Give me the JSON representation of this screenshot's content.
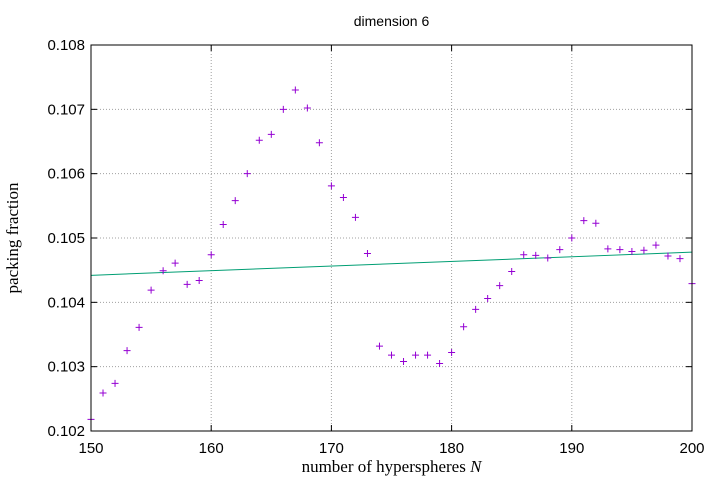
{
  "chart_data": {
    "type": "scatter",
    "title": "dimension 6",
    "xlabel_prefix": "number of hyperspheres ",
    "xlabel_var": "N",
    "ylabel": "packing fraction",
    "xlim": [
      150,
      200
    ],
    "ylim": [
      0.102,
      0.108
    ],
    "xticks": [
      150,
      160,
      170,
      180,
      190,
      200
    ],
    "yticks": [
      0.102,
      0.103,
      0.104,
      0.105,
      0.106,
      0.107,
      0.108
    ],
    "xtick_labels": [
      "150",
      "160",
      "170",
      "180",
      "190",
      "200"
    ],
    "ytick_labels": [
      "0.102",
      "0.103",
      "0.104",
      "0.105",
      "0.106",
      "0.107",
      "0.108"
    ],
    "grid": true,
    "colors": {
      "points": "#9400d3",
      "fit": "#009e73",
      "grid": "#a0a0a0",
      "axes": "#000000"
    },
    "points": {
      "x": [
        150,
        151,
        152,
        153,
        154,
        155,
        156,
        157,
        158,
        159,
        160,
        161,
        162,
        163,
        164,
        165,
        166,
        167,
        168,
        169,
        170,
        171,
        172,
        173,
        174,
        175,
        176,
        177,
        178,
        179,
        180,
        181,
        182,
        183,
        184,
        185,
        186,
        187,
        188,
        189,
        190,
        191,
        192,
        193,
        194,
        195,
        196,
        197,
        198,
        199,
        200
      ],
      "y": [
        0.10218,
        0.10259,
        0.10274,
        0.10325,
        0.10361,
        0.10419,
        0.10449,
        0.10461,
        0.10428,
        0.10434,
        0.10474,
        0.10521,
        0.10558,
        0.106,
        0.10652,
        0.10661,
        0.107,
        0.1073,
        0.10702,
        0.10648,
        0.10581,
        0.10563,
        0.10532,
        0.10476,
        0.10332,
        0.10318,
        0.10308,
        0.10318,
        0.10318,
        0.10305,
        0.10322,
        0.10362,
        0.10389,
        0.10406,
        0.10426,
        0.10448,
        0.10474,
        0.10473,
        0.10469,
        0.10482,
        0.105,
        0.10527,
        0.10523,
        0.10483,
        0.10482,
        0.10479,
        0.10481,
        0.10489,
        0.10472,
        0.10468,
        0.10429
      ]
    },
    "fit_line": {
      "x": [
        150,
        200
      ],
      "y": [
        0.10442,
        0.10478
      ]
    }
  }
}
